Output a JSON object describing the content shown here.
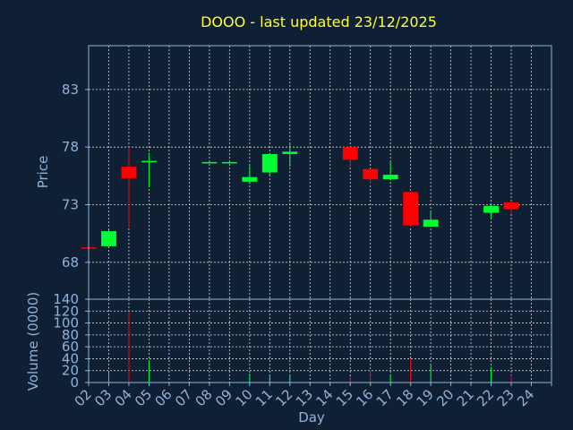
{
  "chart_data": {
    "type": "candlestick",
    "title": "DOOO - last updated 23/12/2025",
    "colors": {
      "background": "#0f2035",
      "title": "#ffff33",
      "axis_text": "#8fb3d9",
      "up": "#00ff33",
      "down": "#ff0000",
      "grid": "#d8d8d8"
    },
    "price_panel": {
      "ylabel": "Price",
      "ylim": [
        64.8,
        86.8
      ],
      "yticks": [
        68,
        73,
        78,
        83
      ],
      "grid": true
    },
    "volume_panel": {
      "ylabel": "Volume (0000)",
      "ylim": [
        0,
        140
      ],
      "yticks": [
        0,
        20,
        40,
        60,
        80,
        100,
        120,
        140
      ],
      "grid": true
    },
    "xlabel": "Day",
    "x_categories": [
      "02",
      "03",
      "04",
      "05",
      "06",
      "07",
      "08",
      "09",
      "10",
      "11",
      "12",
      "13",
      "14",
      "15",
      "16",
      "17",
      "18",
      "19",
      "20",
      "21",
      "22",
      "23",
      "24"
    ],
    "candles": [
      {
        "day": "02",
        "open": 69.3,
        "high": 69.3,
        "low": 69.2,
        "close": 69.2,
        "volume": 0.5
      },
      {
        "day": "03",
        "open": 69.4,
        "high": 70.8,
        "low": 69.3,
        "close": 70.7,
        "volume": 18
      },
      {
        "day": "04",
        "open": 76.3,
        "high": 78.0,
        "low": 71.0,
        "close": 75.3,
        "volume": 120
      },
      {
        "day": "05",
        "open": 76.8,
        "high": 77.5,
        "low": 74.5,
        "close": 76.8,
        "volume": 38
      },
      {
        "day": "08",
        "open": 76.7,
        "high": 76.8,
        "low": 76.6,
        "close": 76.7,
        "volume": 1
      },
      {
        "day": "09",
        "open": 76.7,
        "high": 76.8,
        "low": 76.6,
        "close": 76.7,
        "volume": 1
      },
      {
        "day": "10",
        "open": 75.0,
        "high": 76.4,
        "low": 74.8,
        "close": 75.4,
        "volume": 15
      },
      {
        "day": "11",
        "open": 75.8,
        "high": 77.5,
        "low": 75.5,
        "close": 77.4,
        "volume": 12
      },
      {
        "day": "12",
        "open": 77.4,
        "high": 78.3,
        "low": 76.3,
        "close": 77.6,
        "volume": 14
      },
      {
        "day": "15",
        "open": 78.0,
        "high": 78.0,
        "low": 76.3,
        "close": 76.9,
        "volume": 10
      },
      {
        "day": "16",
        "open": 76.1,
        "high": 76.1,
        "low": 74.8,
        "close": 75.2,
        "volume": 20
      },
      {
        "day": "17",
        "open": 75.2,
        "high": 76.7,
        "low": 75.1,
        "close": 75.6,
        "volume": 14
      },
      {
        "day": "18",
        "open": 74.1,
        "high": 74.1,
        "low": 71.1,
        "close": 71.2,
        "volume": 40
      },
      {
        "day": "19",
        "open": 71.1,
        "high": 72.4,
        "low": 71.1,
        "close": 71.7,
        "volume": 32
      },
      {
        "day": "22",
        "open": 72.3,
        "high": 73.0,
        "low": 71.8,
        "close": 72.9,
        "volume": 26
      },
      {
        "day": "23",
        "open": 73.2,
        "high": 73.3,
        "low": 72.2,
        "close": 72.6,
        "volume": 12
      }
    ]
  }
}
